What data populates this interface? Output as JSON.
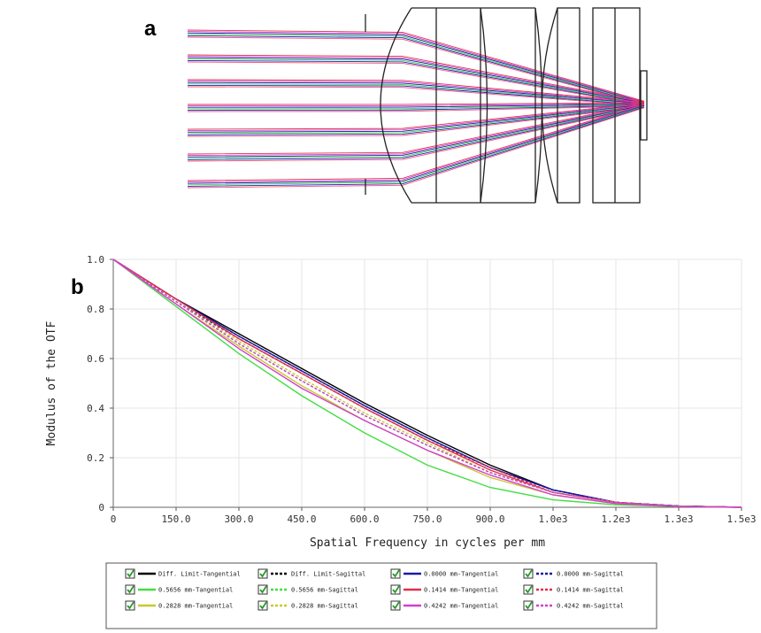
{
  "figure": {
    "panel_a_label": "a",
    "panel_b_label": "b"
  },
  "chart_data": {
    "type": "line",
    "x_label": "Spatial Frequency in cycles per mm",
    "y_label": "Modulus of the OTF",
    "x": [
      0,
      150,
      300,
      450,
      600,
      750,
      900,
      1050,
      1200,
      1350,
      1500
    ],
    "xlim": [
      0,
      1500
    ],
    "xticks": [
      0,
      {
        "value": 150,
        "label": "150.0"
      },
      {
        "value": 300,
        "label": "300.0"
      },
      {
        "value": 450,
        "label": "450.0"
      },
      {
        "value": 600,
        "label": "600.0"
      },
      {
        "value": 750,
        "label": "750.0"
      },
      {
        "value": 900,
        "label": "900.0"
      },
      {
        "value": 1050,
        "label": "1.0e3"
      },
      {
        "value": 1200,
        "label": "1.2e3"
      },
      {
        "value": 1350,
        "label": "1.3e3"
      },
      {
        "value": 1500,
        "label": "1.5e3"
      }
    ],
    "ylim": [
      0,
      1
    ],
    "yticks": [
      0,
      0.2,
      0.4,
      0.6,
      0.8,
      {
        "value": 1,
        "label": "1.0"
      }
    ],
    "grid": true,
    "series": [
      {
        "name": "Diff. Limit-Tangential",
        "color": "#000000",
        "dashed": false,
        "values": [
          1,
          0.84,
          0.7,
          0.56,
          0.42,
          0.29,
          0.17,
          0.07,
          0.02,
          0.005,
          0
        ]
      },
      {
        "name": "Diff. Limit-Sagittal",
        "color": "#000000",
        "dashed": true,
        "values": [
          1,
          0.84,
          0.69,
          0.55,
          0.41,
          0.28,
          0.16,
          0.07,
          0.02,
          0.005,
          0
        ]
      },
      {
        "name": "0.0000 mm-Tangential",
        "color": "#1a1aa6",
        "dashed": false,
        "values": [
          1,
          0.84,
          0.69,
          0.55,
          0.41,
          0.28,
          0.16,
          0.07,
          0.02,
          0.005,
          0
        ]
      },
      {
        "name": "0.0000 mm-Sagittal",
        "color": "#1a1aa6",
        "dashed": true,
        "values": [
          1,
          0.83,
          0.68,
          0.54,
          0.4,
          0.27,
          0.16,
          0.07,
          0.02,
          0.005,
          0
        ]
      },
      {
        "name": "0.5656 mm-Tangential",
        "color": "#44dd44",
        "dashed": false,
        "values": [
          1,
          0.81,
          0.62,
          0.45,
          0.3,
          0.17,
          0.08,
          0.03,
          0.01,
          0.003,
          0
        ]
      },
      {
        "name": "0.5656 mm-Sagittal",
        "color": "#44dd44",
        "dashed": true,
        "values": [
          1,
          0.83,
          0.66,
          0.51,
          0.37,
          0.25,
          0.14,
          0.06,
          0.02,
          0.004,
          0
        ]
      },
      {
        "name": "0.1414 mm-Tangential",
        "color": "#e0304a",
        "dashed": false,
        "values": [
          1,
          0.84,
          0.68,
          0.54,
          0.4,
          0.27,
          0.15,
          0.06,
          0.02,
          0.004,
          0
        ]
      },
      {
        "name": "0.1414 mm-Sagittal",
        "color": "#e0304a",
        "dashed": true,
        "values": [
          1,
          0.84,
          0.68,
          0.54,
          0.4,
          0.27,
          0.16,
          0.06,
          0.02,
          0.004,
          0
        ]
      },
      {
        "name": "0.2828 mm-Tangential",
        "color": "#c8c830",
        "dashed": false,
        "values": [
          1,
          0.82,
          0.65,
          0.49,
          0.35,
          0.23,
          0.12,
          0.05,
          0.015,
          0.004,
          0
        ]
      },
      {
        "name": "0.2828 mm-Sagittal",
        "color": "#c8c830",
        "dashed": true,
        "values": [
          1,
          0.83,
          0.67,
          0.52,
          0.38,
          0.26,
          0.14,
          0.06,
          0.02,
          0.004,
          0
        ]
      },
      {
        "name": "0.4242 mm-Tangential",
        "color": "#d040d0",
        "dashed": false,
        "values": [
          1,
          0.82,
          0.64,
          0.48,
          0.35,
          0.23,
          0.13,
          0.05,
          0.015,
          0.003,
          0
        ]
      },
      {
        "name": "0.4242 mm-Sagittal",
        "color": "#d040d0",
        "dashed": true,
        "values": [
          1,
          0.83,
          0.66,
          0.51,
          0.37,
          0.25,
          0.14,
          0.06,
          0.02,
          0.004,
          0
        ]
      }
    ]
  }
}
